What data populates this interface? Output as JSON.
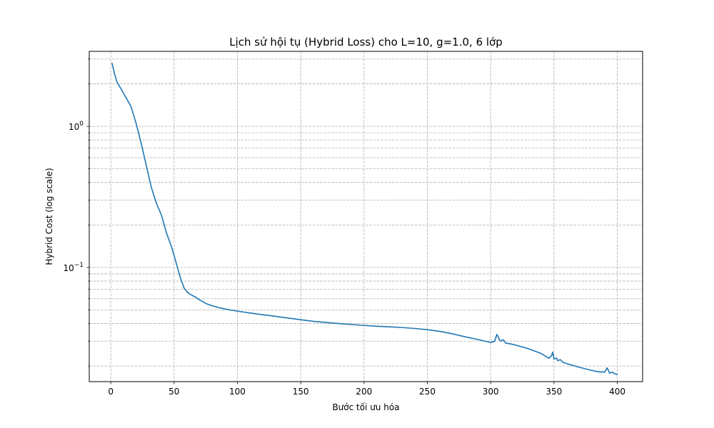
{
  "chart_data": {
    "type": "line",
    "title": "Lịch sử hội tụ (Hybrid Loss) cho L=10, g=1.0, 6 lớp",
    "xlabel": "Bước tối ưu hóa",
    "ylabel": "Hybrid Cost (log scale)",
    "xlim": [
      -17,
      420
    ],
    "ylim": [
      0.0155,
      3.4
    ],
    "yscale": "log",
    "grid": true,
    "grid_style": "dashed",
    "line_color": "#1f77b4",
    "x_ticks": [
      0,
      50,
      100,
      150,
      200,
      250,
      300,
      350,
      400
    ],
    "y_major_ticks": [
      {
        "value": 1.0,
        "label": "10",
        "exp": "0"
      },
      {
        "value": 0.1,
        "label": "10",
        "exp": "−1"
      }
    ],
    "y_minor_ticks": [
      3,
      2,
      0.9,
      0.8,
      0.7,
      0.6,
      0.5,
      0.4,
      0.3,
      0.2,
      0.09,
      0.08,
      0.07,
      0.06,
      0.05,
      0.04,
      0.03,
      0.02
    ],
    "series": [
      {
        "x": [
          1,
          3,
          5,
          8,
          12,
          16,
          20,
          24,
          28,
          32,
          36,
          40,
          44,
          48,
          52,
          55,
          58,
          61,
          64,
          67,
          70,
          75,
          80,
          85,
          90,
          95,
          100,
          110,
          120,
          130,
          140,
          150,
          160,
          170,
          180,
          190,
          200,
          210,
          220,
          230,
          240,
          250,
          260,
          270,
          280,
          290,
          300,
          303,
          305,
          307,
          308,
          310,
          312,
          315,
          320,
          330,
          340,
          346,
          348,
          349,
          350,
          352,
          353,
          355,
          357,
          360,
          370,
          380,
          385,
          390,
          392,
          394,
          396,
          398,
          400
        ],
        "y": [
          2.8,
          2.35,
          2.05,
          1.85,
          1.6,
          1.38,
          1.05,
          0.76,
          0.53,
          0.37,
          0.285,
          0.235,
          0.175,
          0.14,
          0.105,
          0.084,
          0.071,
          0.066,
          0.0635,
          0.0615,
          0.059,
          0.0555,
          0.0535,
          0.052,
          0.0508,
          0.0498,
          0.049,
          0.0475,
          0.0462,
          0.045,
          0.0438,
          0.0426,
          0.0415,
          0.0407,
          0.04,
          0.0394,
          0.0388,
          0.0383,
          0.0379,
          0.0375,
          0.0369,
          0.0362,
          0.0352,
          0.0338,
          0.0322,
          0.0308,
          0.0294,
          0.0299,
          0.0335,
          0.0306,
          0.0301,
          0.0307,
          0.029,
          0.0288,
          0.0281,
          0.0265,
          0.0245,
          0.0227,
          0.0236,
          0.0251,
          0.0224,
          0.0228,
          0.0218,
          0.0222,
          0.0213,
          0.0208,
          0.0196,
          0.0186,
          0.0182,
          0.0181,
          0.0194,
          0.0178,
          0.0181,
          0.0176,
          0.0174
        ]
      }
    ]
  }
}
